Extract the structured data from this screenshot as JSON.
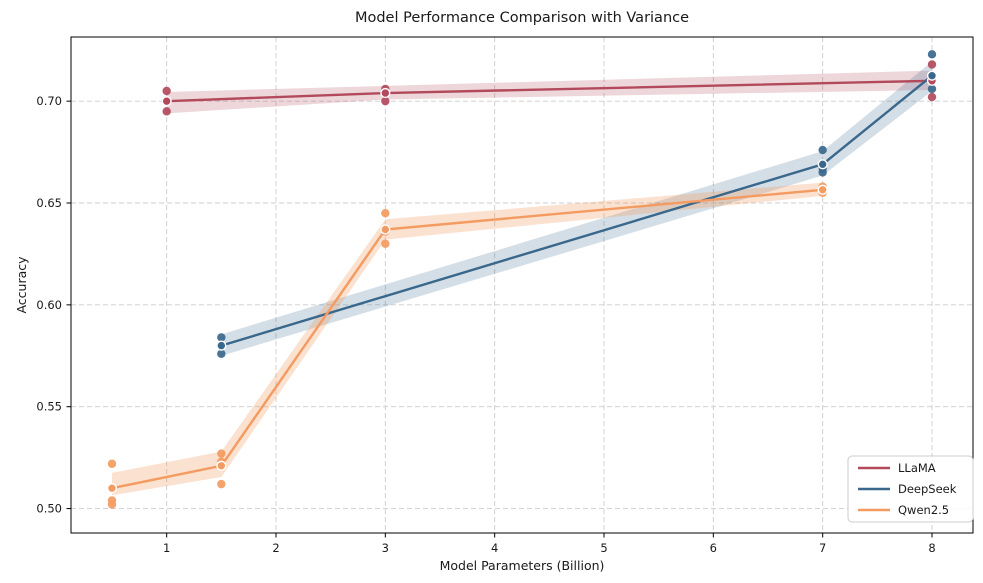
{
  "chart_data": {
    "type": "line",
    "title": "Model Performance Comparison with Variance",
    "xlabel": "Model Parameters (Billion)",
    "ylabel": "Accuracy",
    "xlim": [
      0.125,
      8.375
    ],
    "ylim": [
      0.488,
      0.7315
    ],
    "xticks": [
      1,
      2,
      3,
      4,
      5,
      6,
      7,
      8
    ],
    "xtick_labels": [
      "1",
      "2",
      "3",
      "4",
      "5",
      "6",
      "7",
      "8"
    ],
    "yticks": [
      0.5,
      0.55,
      0.6,
      0.65,
      0.7
    ],
    "ytick_labels": [
      "0.50",
      "0.55",
      "0.60",
      "0.65",
      "0.70"
    ],
    "grid": true,
    "grid_color": "#cccccc",
    "legend_position": "lower right",
    "series": [
      {
        "name": "LLaMA",
        "color": "#b24a5c",
        "x": [
          1,
          3,
          8
        ],
        "mean": [
          0.7,
          0.704,
          0.71
        ],
        "band_upper": [
          0.7045,
          0.7075,
          0.715
        ],
        "band_lower": [
          0.694,
          0.7008,
          0.7055
        ],
        "points": [
          [
            1,
            0.705
          ],
          [
            1,
            0.695
          ],
          [
            3,
            0.706
          ],
          [
            3,
            0.7
          ],
          [
            8,
            0.718
          ],
          [
            8,
            0.702
          ]
        ]
      },
      {
        "name": "DeepSeek",
        "color": "#39688c",
        "x": [
          1.5,
          7,
          8
        ],
        "mean": [
          0.58,
          0.669,
          0.7125
        ],
        "band_upper": [
          0.5855,
          0.6755,
          0.7195
        ],
        "band_lower": [
          0.575,
          0.6635,
          0.705
        ],
        "points": [
          [
            1.5,
            0.584
          ],
          [
            1.5,
            0.58
          ],
          [
            1.5,
            0.576
          ],
          [
            7,
            0.676
          ],
          [
            7,
            0.667
          ],
          [
            7,
            0.665
          ],
          [
            8,
            0.723
          ],
          [
            8,
            0.711
          ],
          [
            8,
            0.706
          ]
        ]
      },
      {
        "name": "Qwen2.5",
        "color": "#f39b61",
        "x": [
          0.5,
          1.5,
          3,
          7
        ],
        "mean": [
          0.51,
          0.521,
          0.637,
          0.6565
        ],
        "band_upper": [
          0.5175,
          0.528,
          0.642,
          0.66
        ],
        "band_lower": [
          0.5065,
          0.5155,
          0.632,
          0.6535
        ],
        "points": [
          [
            0.5,
            0.522
          ],
          [
            0.5,
            0.504
          ],
          [
            0.5,
            0.502
          ],
          [
            1.5,
            0.527
          ],
          [
            1.5,
            0.523
          ],
          [
            1.5,
            0.512
          ],
          [
            3,
            0.645
          ],
          [
            3,
            0.636
          ],
          [
            3,
            0.63
          ],
          [
            7,
            0.658
          ],
          [
            7,
            0.655
          ]
        ]
      }
    ]
  }
}
